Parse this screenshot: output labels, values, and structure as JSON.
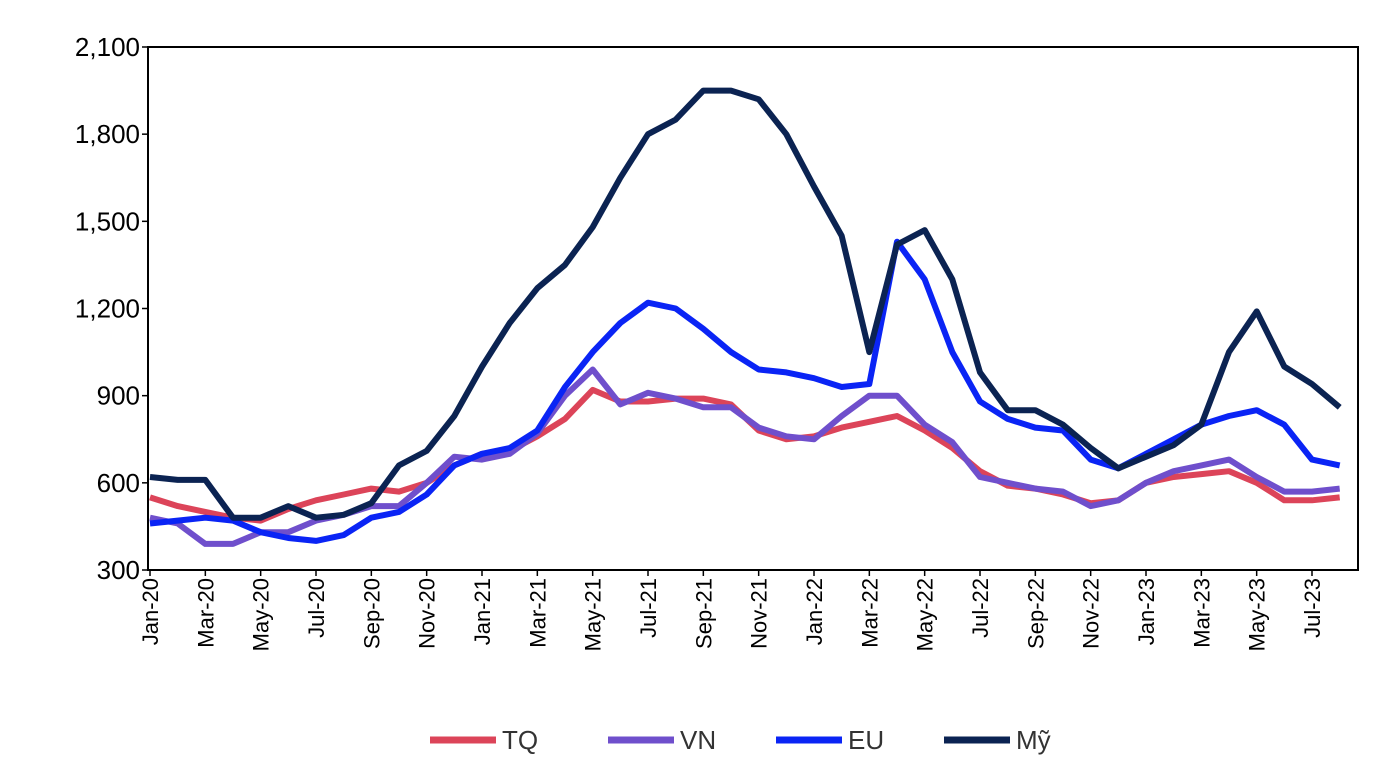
{
  "chart_data": {
    "type": "line",
    "categories": [
      "Jan-20",
      null,
      "Mar-20",
      null,
      "May-20",
      null,
      "Jul-20",
      null,
      "Sep-20",
      null,
      "Nov-20",
      null,
      "Jan-21",
      null,
      "Mar-21",
      null,
      "May-21",
      null,
      "Jul-21",
      null,
      "Sep-21",
      null,
      "Nov-21",
      null,
      "Jan-22",
      null,
      "Mar-22",
      null,
      "May-22",
      null,
      "Jul-22",
      null,
      "Sep-22",
      null,
      "Nov-22",
      null,
      "Jan-23",
      null,
      "Mar-23",
      null,
      "May-23",
      null,
      "Jul-23",
      null
    ],
    "series": [
      {
        "name": "TQ",
        "color": "#dc4459",
        "values": [
          550,
          520,
          500,
          480,
          470,
          510,
          540,
          560,
          580,
          570,
          600,
          660,
          700,
          710,
          760,
          820,
          920,
          880,
          880,
          890,
          890,
          870,
          780,
          750,
          760,
          790,
          810,
          830,
          780,
          720,
          640,
          590,
          580,
          560,
          530,
          540,
          600,
          620,
          630,
          640,
          600,
          540,
          540,
          550
        ]
      },
      {
        "name": "VN",
        "color": "#6f4fcc",
        "values": [
          480,
          460,
          390,
          390,
          430,
          430,
          470,
          490,
          520,
          520,
          600,
          690,
          680,
          700,
          770,
          900,
          990,
          870,
          910,
          890,
          860,
          860,
          790,
          760,
          750,
          830,
          900,
          900,
          800,
          740,
          620,
          600,
          580,
          570,
          520,
          540,
          600,
          640,
          660,
          680,
          620,
          570,
          570,
          580
        ]
      },
      {
        "name": "EU",
        "color": "#0a24f5",
        "values": [
          460,
          470,
          480,
          470,
          430,
          410,
          400,
          420,
          480,
          500,
          560,
          660,
          700,
          720,
          780,
          930,
          1050,
          1150,
          1220,
          1200,
          1130,
          1050,
          990,
          980,
          960,
          930,
          940,
          1430,
          1300,
          1050,
          880,
          820,
          790,
          780,
          680,
          650,
          700,
          750,
          800,
          830,
          850,
          800,
          680,
          660
        ]
      },
      {
        "name": "Mỹ",
        "color": "#0b2352",
        "values": [
          620,
          610,
          610,
          480,
          480,
          520,
          480,
          490,
          530,
          660,
          710,
          830,
          1000,
          1150,
          1270,
          1350,
          1480,
          1650,
          1800,
          1850,
          1950,
          1950,
          1920,
          1800,
          1620,
          1450,
          1050,
          1420,
          1470,
          1300,
          980,
          850,
          850,
          800,
          720,
          650,
          690,
          730,
          800,
          1050,
          1190,
          1000,
          940,
          860
        ]
      }
    ],
    "ylim": [
      300,
      2100
    ],
    "yticks": [
      300,
      600,
      900,
      {
        "value": 1200,
        "label": "1,200"
      },
      {
        "value": 1500,
        "label": "1,500"
      },
      {
        "value": 1800,
        "label": "1,800"
      },
      {
        "value": 2100,
        "label": "2,100"
      }
    ],
    "legend": "bottom"
  }
}
